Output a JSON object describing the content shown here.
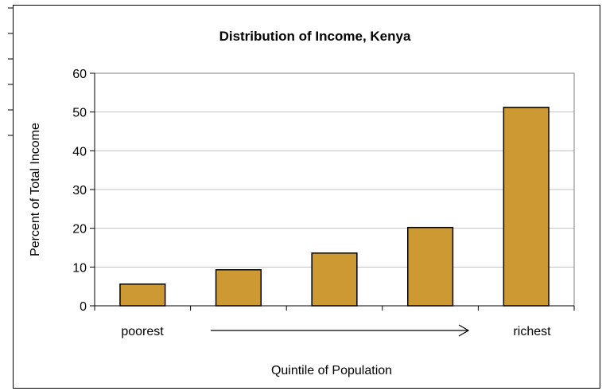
{
  "chart_data": {
    "type": "bar",
    "title": "Distribution of Income, Kenya",
    "xlabel": "Quintile of Population",
    "ylabel": "Percent of Total Income",
    "categories": [
      "",
      "",
      "",
      "",
      ""
    ],
    "x_annotations": {
      "left": "poorest",
      "right": "richest"
    },
    "values": [
      5.6,
      9.3,
      13.6,
      20.2,
      51.2
    ],
    "ylim": [
      0,
      60
    ],
    "yticks": [
      0,
      10,
      20,
      30,
      40,
      50,
      60
    ],
    "grid": true,
    "bar_color": "#cc9933",
    "grid_color": "#c0c0c0",
    "legend": "none"
  }
}
